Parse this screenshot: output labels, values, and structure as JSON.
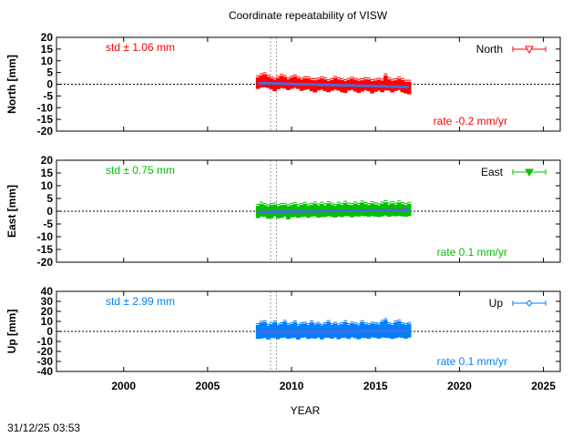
{
  "chart_data": {
    "type": "scatter",
    "title": "Coordinate repeatability of VISW",
    "xlabel": "YEAR",
    "xlim": [
      1996,
      2026
    ],
    "xticks": [
      2000,
      2005,
      2010,
      2015,
      2020,
      2025
    ],
    "vlines": [
      2008.75,
      2009.1
    ],
    "x": [
      2008.0,
      2008.2,
      2008.4,
      2008.6,
      2008.8,
      2009.0,
      2009.2,
      2009.4,
      2009.6,
      2009.8,
      2010.0,
      2010.2,
      2010.4,
      2010.6,
      2010.8,
      2011.0,
      2011.2,
      2011.4,
      2011.6,
      2011.8,
      2012.0,
      2012.2,
      2012.4,
      2012.6,
      2012.8,
      2013.0,
      2013.2,
      2013.4,
      2013.6,
      2013.8,
      2014.0,
      2014.2,
      2014.4,
      2014.6,
      2014.8,
      2015.0,
      2015.2,
      2015.4,
      2015.6,
      2015.8,
      2016.0,
      2016.2,
      2016.4,
      2016.6,
      2016.8,
      2017.0
    ],
    "panels": [
      {
        "name": "North",
        "ylabel": "North [mm]",
        "ylim": [
          -20,
          20
        ],
        "yticks": [
          20,
          15,
          10,
          5,
          0,
          -5,
          -10,
          -15,
          -20
        ],
        "color": "#ff0000",
        "marker": "open-triangle-down",
        "std_label": "std ± 1.06 mm",
        "rate_label": "rate -0.2 mm/yr",
        "trend": [
          0.5,
          -1.2
        ],
        "values": [
          0.5,
          1.2,
          1.5,
          0.8,
          0.2,
          -0.5,
          0.3,
          1.0,
          0.6,
          -0.2,
          0.4,
          0.9,
          0.3,
          -0.4,
          0.1,
          0.2,
          -0.6,
          -0.9,
          -0.3,
          0.1,
          -0.4,
          -1.0,
          -0.5,
          0.2,
          -0.3,
          -0.8,
          -1.2,
          -0.4,
          0.0,
          -0.6,
          -1.1,
          -0.7,
          -0.2,
          -0.5,
          -1.3,
          -0.8,
          -0.4,
          -0.9,
          0.6,
          -0.3,
          -1.0,
          -0.6,
          0.0,
          -0.8,
          -1.4,
          -1.6
        ],
        "errors": [
          2.5,
          2.6,
          2.8,
          2.4,
          2.3,
          2.5,
          2.4,
          2.6,
          2.5,
          2.3,
          2.4,
          2.5,
          2.3,
          2.4,
          2.5,
          2.3,
          2.4,
          2.6,
          2.3,
          2.4,
          2.5,
          2.4,
          2.3,
          2.5,
          2.4,
          2.6,
          2.5,
          2.3,
          2.4,
          2.5,
          2.6,
          2.4,
          2.3,
          2.5,
          2.6,
          2.4,
          2.3,
          2.5,
          3.2,
          2.4,
          2.5,
          2.3,
          2.4,
          2.6,
          2.5,
          2.7
        ]
      },
      {
        "name": "East",
        "ylabel": "East [mm]",
        "ylim": [
          -20,
          20
        ],
        "yticks": [
          20,
          15,
          10,
          5,
          0,
          -5,
          -10,
          -15,
          -20
        ],
        "color": "#00c000",
        "marker": "filled-triangle-down",
        "std_label": "std ± 0.75 mm",
        "rate_label": "rate  0.1 mm/yr",
        "trend": [
          -0.3,
          0.5
        ],
        "values": [
          -0.3,
          0.4,
          0.1,
          -0.5,
          -0.2,
          0.3,
          -0.4,
          -0.1,
          0.2,
          -0.6,
          0.0,
          0.3,
          -0.3,
          0.1,
          0.4,
          -0.2,
          0.2,
          0.5,
          -0.1,
          0.3,
          0.0,
          0.6,
          0.2,
          -0.2,
          0.4,
          0.1,
          0.7,
          0.3,
          0.0,
          0.5,
          0.2,
          0.8,
          0.4,
          0.1,
          0.6,
          0.3,
          0.0,
          0.5,
          0.9,
          0.2,
          0.6,
          0.3,
          0.8,
          0.4,
          0.1,
          0.5
        ],
        "errors": [
          2.4,
          2.5,
          2.3,
          2.4,
          2.6,
          2.3,
          2.4,
          2.5,
          2.3,
          2.6,
          2.4,
          2.5,
          2.3,
          2.4,
          2.5,
          2.4,
          2.3,
          2.5,
          2.4,
          2.6,
          2.3,
          2.5,
          2.4,
          2.3,
          2.5,
          2.4,
          2.6,
          2.3,
          2.4,
          2.5,
          2.3,
          2.6,
          2.4,
          2.3,
          2.5,
          2.4,
          2.3,
          2.5,
          2.6,
          2.4,
          2.5,
          2.3,
          2.6,
          2.4,
          2.3,
          2.4
        ]
      },
      {
        "name": "Up",
        "ylabel": "Up [mm]",
        "ylim": [
          -40,
          40
        ],
        "yticks": [
          40,
          30,
          20,
          10,
          0,
          -10,
          -20,
          -30,
          -40
        ],
        "color": "#0080ff",
        "marker": "open-diamond",
        "std_label": "std ± 2.99 mm",
        "rate_label": "rate  0.1 mm/yr",
        "trend": [
          -0.5,
          0.5
        ],
        "values": [
          -0.5,
          0.8,
          1.5,
          -1.0,
          0.3,
          1.2,
          -0.8,
          0.5,
          1.8,
          -0.4,
          0.2,
          1.4,
          -1.2,
          0.6,
          1.0,
          -0.6,
          1.3,
          -0.2,
          0.8,
          -1.0,
          0.5,
          1.6,
          -0.3,
          0.9,
          -0.8,
          0.4,
          1.5,
          -0.5,
          1.1,
          0.2,
          -0.9,
          1.4,
          0.3,
          -0.4,
          1.0,
          0.6,
          -0.2,
          1.8,
          2.5,
          0.4,
          -0.6,
          1.2,
          2.0,
          0.5,
          -0.3,
          0.8
        ],
        "errors": [
          7,
          8,
          8,
          7,
          7,
          8,
          7,
          7,
          8,
          7,
          7,
          8,
          7,
          7,
          7,
          7,
          8,
          7,
          7,
          7,
          7,
          8,
          7,
          7,
          7,
          7,
          8,
          7,
          7,
          7,
          7,
          8,
          7,
          7,
          7,
          7,
          7,
          8,
          9,
          7,
          7,
          8,
          8,
          7,
          7,
          7
        ]
      }
    ],
    "zero_line": true,
    "trend_color": "#4a6ad8",
    "legend_placement": "top-right"
  },
  "footer": {
    "timestamp": "31/12/25 03:53"
  }
}
